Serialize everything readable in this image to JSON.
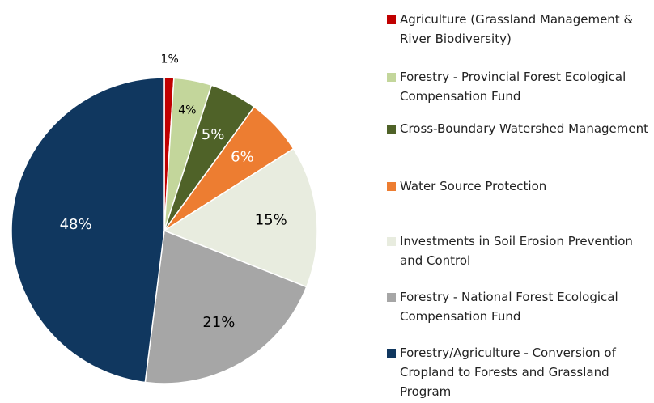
{
  "chart_data": {
    "type": "pie",
    "categories": [
      "Agriculture (Grassland Management & River Biodiversity)",
      "Forestry - Provincial Forest Ecological Compensation Fund",
      "Cross-Boundary Watershed Management",
      "Water Source Protection",
      "Investments in Soil Erosion Prevention and Control",
      "Forestry - National Forest Ecological Compensation Fund",
      "Forestry/Agriculture - Conversion of Cropland to Forests and Grassland Program"
    ],
    "values": [
      1,
      4,
      5,
      6,
      15,
      21,
      48
    ],
    "value_labels": [
      "1%",
      "4%",
      "5%",
      "6%",
      "15%",
      "21%",
      "48%"
    ],
    "colors": [
      "#c00000",
      "#c3d69b",
      "#4f6228",
      "#ed7d31",
      "#e8ecdf",
      "#a6a6a6",
      "#10375f"
    ]
  }
}
